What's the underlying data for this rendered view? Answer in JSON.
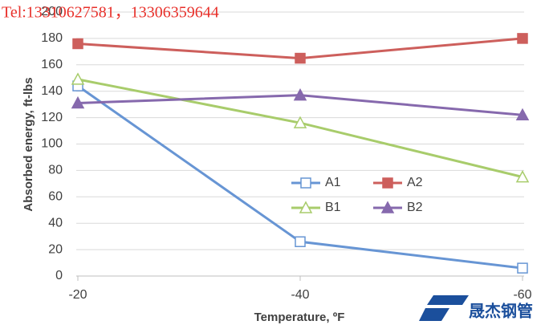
{
  "chart_data": {
    "type": "line",
    "x_label": "Temperature, ºF",
    "y_label": "Absorbed energy, ft-lbs",
    "categories": [
      "-20",
      "-40",
      "-60"
    ],
    "series": [
      {
        "name": "A1",
        "color": "#6795d4",
        "marker": "square-open",
        "values": [
          144,
          26,
          6
        ]
      },
      {
        "name": "A2",
        "color": "#cd5f5c",
        "marker": "square",
        "values": [
          176,
          165,
          180
        ]
      },
      {
        "name": "B1",
        "color": "#a8cc6b",
        "marker": "triangle-open",
        "values": [
          149,
          116,
          75
        ]
      },
      {
        "name": "B2",
        "color": "#8669ad",
        "marker": "triangle",
        "values": [
          131,
          137,
          122
        ]
      }
    ],
    "ylim": [
      0,
      200
    ],
    "yticks": [
      0,
      20,
      40,
      60,
      80,
      100,
      120,
      140,
      160,
      180,
      200
    ],
    "grid": true
  },
  "watermark": "Tel:13310627581，13306359644",
  "logo": "晟杰钢管"
}
